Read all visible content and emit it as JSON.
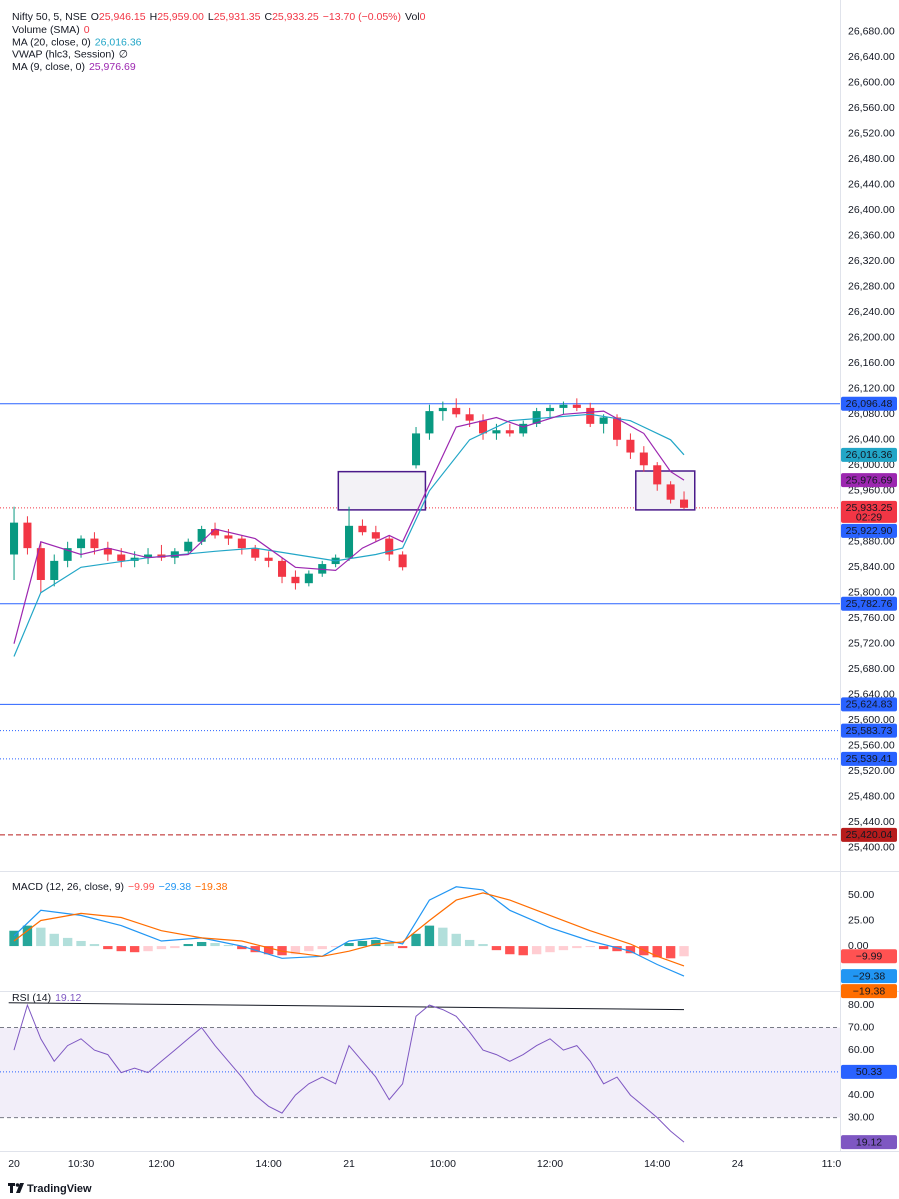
{
  "header": {
    "symbol": "Nifty 50, 5, NSE",
    "ohlc": [
      {
        "key": "O",
        "value": "25,946.15"
      },
      {
        "key": "H",
        "value": "25,959.00"
      },
      {
        "key": "L",
        "value": "25,931.35"
      },
      {
        "key": "C",
        "value": "25,933.25"
      }
    ],
    "change": "−13.70 (−0.05%)",
    "volume": {
      "key": "Vol",
      "value": "0"
    },
    "indicators": [
      {
        "name": "Volume (SMA)",
        "value": "0",
        "color": "#f23645"
      },
      {
        "name": "MA (20, close, 0)",
        "value": "26,016.36",
        "color": "#22a6c7"
      },
      {
        "name": "VWAP (hlc3, Session)",
        "value": "∅",
        "color": "#131722"
      },
      {
        "name": "MA (9, close, 0)",
        "value": "25,976.69",
        "color": "#9c27b0"
      }
    ]
  },
  "chart_data": [
    {
      "type": "candlestick",
      "up_color": "#089981",
      "down_color": "#f23645",
      "xlim": [
        -0.6,
        61.64
      ],
      "ylim": [
        25365,
        26730
      ],
      "grid": false,
      "yticks": [
        {
          "value": 26680,
          "label": "26,680.00"
        },
        {
          "value": 26640,
          "label": "26,640.00"
        },
        {
          "value": 26600,
          "label": "26,600.00"
        },
        {
          "value": 26560,
          "label": "26,560.00"
        },
        {
          "value": 26520,
          "label": "26,520.00"
        },
        {
          "value": 26480,
          "label": "26,480.00"
        },
        {
          "value": 26440,
          "label": "26,440.00"
        },
        {
          "value": 26400,
          "label": "26,400.00"
        },
        {
          "value": 26360,
          "label": "26,360.00"
        },
        {
          "value": 26320,
          "label": "26,320.00"
        },
        {
          "value": 26280,
          "label": "26,280.00"
        },
        {
          "value": 26240,
          "label": "26,240.00"
        },
        {
          "value": 26200,
          "label": "26,200.00"
        },
        {
          "value": 26160,
          "label": "26,160.00"
        },
        {
          "value": 26120,
          "label": "26,120.00"
        },
        {
          "value": 26080,
          "label": "26,080.00"
        },
        {
          "value": 26040,
          "label": "26,040.00"
        },
        {
          "value": 26000,
          "label": "26,000.00"
        },
        {
          "value": 25960,
          "label": "25,960.00"
        },
        {
          "value": 25920,
          "label": "25,920.00"
        },
        {
          "value": 25880,
          "label": "25,880.00"
        },
        {
          "value": 25840,
          "label": "25,840.00"
        },
        {
          "value": 25800,
          "label": "25,800.00"
        },
        {
          "value": 25760,
          "label": "25,760.00"
        },
        {
          "value": 25720,
          "label": "25,720.00"
        },
        {
          "value": 25680,
          "label": "25,680.00"
        },
        {
          "value": 25640,
          "label": "25,640.00"
        },
        {
          "value": 25600,
          "label": "25,600.00"
        },
        {
          "value": 25560,
          "label": "25,560.00"
        },
        {
          "value": 25520,
          "label": "25,520.00"
        },
        {
          "value": 25480,
          "label": "25,480.00"
        },
        {
          "value": 25440,
          "label": "25,440.00"
        },
        {
          "value": 25400,
          "label": "25,400.00"
        }
      ],
      "x": [
        0,
        1,
        2,
        3,
        4,
        5,
        6,
        7,
        8,
        9,
        10,
        11,
        12,
        13,
        14,
        15,
        16,
        17,
        18,
        19,
        20,
        21,
        22,
        23,
        24,
        25,
        26,
        27,
        28,
        29,
        30,
        31,
        32,
        33,
        34,
        35,
        36,
        37,
        38,
        39,
        40,
        41,
        42,
        43,
        44,
        45,
        46,
        47,
        48,
        49,
        50
      ],
      "open": [
        25860,
        25910,
        25870,
        25820,
        25850,
        25870,
        25885,
        25870,
        25860,
        25850,
        25855,
        25860,
        25855,
        25865,
        25880,
        25900,
        25890,
        25885,
        25870,
        25855,
        25850,
        25825,
        25815,
        25830,
        25845,
        25855,
        25905,
        25895,
        25885,
        25860,
        26000,
        26050,
        26085,
        26090,
        26080,
        26070,
        26050,
        26055,
        26050,
        26065,
        26085,
        26090,
        26095,
        26090,
        26065,
        26075,
        26040,
        26020,
        26000,
        25970,
        25946.15
      ],
      "high": [
        25935,
        25920,
        25880,
        25860,
        25880,
        25890,
        25895,
        25880,
        25870,
        25865,
        25870,
        25875,
        25870,
        25885,
        25905,
        25910,
        25900,
        25890,
        25875,
        25865,
        25855,
        25835,
        25835,
        25850,
        25860,
        25935,
        25915,
        25905,
        25890,
        25865,
        26060,
        26095,
        26100,
        26105,
        26090,
        26080,
        26065,
        26065,
        26070,
        26090,
        26095,
        26100,
        26105,
        26098,
        26080,
        26080,
        26050,
        26030,
        26005,
        25975,
        25959
      ],
      "low": [
        25820,
        25860,
        25800,
        25810,
        25840,
        25855,
        25860,
        25850,
        25840,
        25840,
        25845,
        25850,
        25845,
        25860,
        25875,
        25885,
        25875,
        25860,
        25850,
        25840,
        25815,
        25805,
        25810,
        25825,
        25840,
        25850,
        25890,
        25880,
        25850,
        25835,
        25995,
        26040,
        26070,
        26075,
        26060,
        26040,
        26040,
        26045,
        26045,
        26060,
        26075,
        26080,
        26085,
        26060,
        26050,
        26030,
        26010,
        25990,
        25960,
        25940,
        25931.35
      ],
      "close": [
        25910,
        25870,
        25820,
        25850,
        25870,
        25885,
        25870,
        25860,
        25850,
        25855,
        25860,
        25855,
        25865,
        25880,
        25900,
        25890,
        25885,
        25870,
        25855,
        25850,
        25825,
        25815,
        25830,
        25845,
        25855,
        25905,
        25895,
        25885,
        25860,
        25840,
        26050,
        26085,
        26090,
        26080,
        26070,
        26050,
        26055,
        26050,
        26065,
        26085,
        26090,
        26095,
        26090,
        26065,
        26075,
        26040,
        26020,
        26000,
        25970,
        25946,
        25933.25
      ],
      "lines": [
        {
          "color": "#22a6c7",
          "value_label": "26,016.36",
          "x": [
            0,
            2,
            5,
            10,
            15,
            18,
            21,
            24,
            27,
            29,
            31,
            34,
            37,
            40,
            43,
            46,
            49,
            50
          ],
          "values": [
            25700,
            25800,
            25840,
            25855,
            25865,
            25870,
            25860,
            25850,
            25860,
            25870,
            25960,
            26040,
            26070,
            26075,
            26080,
            26070,
            26040,
            26016.36
          ]
        },
        {
          "color": "#9c27b0",
          "value_label": "25,976.69",
          "x": [
            0,
            2,
            5,
            7,
            10,
            13,
            15,
            18,
            21,
            24,
            26,
            28,
            29,
            31,
            33,
            36,
            38,
            41,
            44,
            47,
            49,
            50
          ],
          "values": [
            25720,
            25880,
            25860,
            25870,
            25855,
            25860,
            25900,
            25885,
            25840,
            25835,
            25870,
            25890,
            25880,
            25970,
            26060,
            26075,
            26060,
            26080,
            26085,
            26050,
            25990,
            25976.69
          ]
        }
      ],
      "levels": [
        {
          "value": 26096.48,
          "label": "26,096.48",
          "color": "#2962ff",
          "style": "solid"
        },
        {
          "value": 25933.25,
          "label": "25,933.25",
          "sublabel": "02:29",
          "color": "#f23645",
          "style": "dotted"
        },
        {
          "value": 25922.9,
          "label": "25,922.90",
          "color": "#2962ff",
          "style": "none"
        },
        {
          "value": 25782.76,
          "label": "25,782.76",
          "color": "#2962ff",
          "style": "solid"
        },
        {
          "value": 25624.83,
          "label": "25,624.83",
          "color": "#2962ff",
          "style": "solid"
        },
        {
          "value": 25583.73,
          "label": "25,583.73",
          "color": "#2962ff",
          "style": "dotted"
        },
        {
          "value": 25539.41,
          "label": "25,539.41",
          "color": "#2962ff",
          "style": "dotted"
        },
        {
          "value": 25420.04,
          "label": "25,420.04",
          "color": "#b71c1c",
          "style": "dashed"
        }
      ],
      "boxes": [
        {
          "x": [
            24.2,
            30.7
          ],
          "values": [
            25990,
            25930
          ],
          "color": "#4a1a8a"
        },
        {
          "x": [
            46.4,
            50.8
          ],
          "values": [
            25991,
            25930
          ],
          "color": "#4a1a8a"
        }
      ]
    },
    {
      "type": "macd",
      "title": "MACD (12, 26, close, 9)",
      "xlim": [
        -0.6,
        61.64
      ],
      "ylim": [
        -43,
        72.5
      ],
      "yticks": [
        {
          "value": 50,
          "label": "50.00"
        },
        {
          "value": 25,
          "label": "25.00"
        },
        {
          "value": 0,
          "label": "0.00"
        }
      ],
      "histogram": {
        "x": [
          0,
          1,
          2,
          3,
          4,
          5,
          6,
          7,
          8,
          9,
          10,
          11,
          12,
          13,
          14,
          15,
          16,
          17,
          18,
          19,
          20,
          21,
          22,
          23,
          24,
          25,
          26,
          27,
          28,
          29,
          30,
          31,
          32,
          33,
          34,
          35,
          36,
          37,
          38,
          39,
          40,
          41,
          42,
          43,
          44,
          45,
          46,
          47,
          48,
          49,
          50
        ],
        "values": [
          15,
          20,
          18,
          12,
          8,
          5,
          2,
          -3,
          -5,
          -6,
          -5,
          -3,
          -2,
          2,
          4,
          3,
          1,
          -3,
          -6,
          -8,
          -9,
          -8,
          -5,
          -3,
          -1,
          3,
          5,
          6,
          4,
          -2,
          12,
          20,
          18,
          12,
          6,
          2,
          -4,
          -8,
          -9,
          -8,
          -6,
          -4,
          -2,
          -1,
          -3,
          -5,
          -7,
          -9,
          -11,
          -12,
          -9.99
        ],
        "value_label": "−9.99",
        "colors": {
          "up_rising": "#26a69a",
          "up_falling": "#b2dfdb",
          "down_falling": "#ff5252",
          "down_rising": "#ffcdd2"
        }
      },
      "lines": [
        {
          "color": "#2196f3",
          "value_label": "−29.38",
          "x": [
            0,
            2,
            5,
            8,
            11,
            14,
            17,
            20,
            23,
            25,
            27,
            29,
            31,
            33,
            35,
            37,
            40,
            43,
            46,
            48,
            50
          ],
          "values": [
            10,
            35,
            30,
            20,
            5,
            8,
            0,
            -12,
            -10,
            5,
            8,
            2,
            45,
            58,
            55,
            35,
            18,
            5,
            -5,
            -18,
            -29.38
          ]
        },
        {
          "color": "#ff6d00",
          "value_label": "−19.38",
          "x": [
            0,
            2,
            5,
            8,
            11,
            14,
            17,
            20,
            23,
            25,
            27,
            29,
            31,
            33,
            35,
            37,
            40,
            43,
            46,
            48,
            50
          ],
          "values": [
            5,
            25,
            32,
            28,
            15,
            8,
            5,
            -5,
            -10,
            -5,
            2,
            4,
            25,
            45,
            52,
            45,
            30,
            15,
            2,
            -10,
            -19.38
          ]
        }
      ]
    },
    {
      "type": "rsi",
      "title": "RSI (14)",
      "xlim": [
        -0.6,
        61.64
      ],
      "ylim": [
        15.6,
        85.8
      ],
      "yticks": [
        {
          "value": 80,
          "label": "80.00"
        },
        {
          "value": 70,
          "label": "70.00"
        },
        {
          "value": 60,
          "label": "60.00"
        },
        {
          "value": 40,
          "label": "40.00"
        },
        {
          "value": 30,
          "label": "30.00"
        }
      ],
      "band": {
        "lower": 30,
        "upper": 70,
        "fill": "#7e57c2"
      },
      "midline": {
        "value": 50.33,
        "label": "50.33",
        "color": "#2962ff"
      },
      "trendline": {
        "x": [
          -0.4,
          50
        ],
        "values": [
          81,
          78
        ],
        "color": "#131722"
      },
      "line": {
        "color": "#7e57c2",
        "value_label": "19.12",
        "x": [
          0,
          1,
          2,
          3,
          4,
          5,
          6,
          7,
          8,
          9,
          10,
          11,
          12,
          13,
          14,
          15,
          16,
          17,
          18,
          19,
          20,
          21,
          22,
          23,
          24,
          25,
          26,
          27,
          28,
          29,
          30,
          31,
          32,
          33,
          34,
          35,
          36,
          37,
          38,
          39,
          40,
          41,
          42,
          43,
          44,
          45,
          46,
          47,
          48,
          49,
          50
        ],
        "values": [
          60,
          80,
          65,
          55,
          62,
          65,
          60,
          58,
          50,
          52,
          50,
          55,
          60,
          65,
          70,
          62,
          55,
          48,
          40,
          35,
          32,
          40,
          45,
          48,
          45,
          62,
          55,
          48,
          38,
          45,
          75,
          80,
          78,
          75,
          68,
          60,
          58,
          55,
          58,
          62,
          65,
          60,
          62,
          55,
          45,
          48,
          40,
          35,
          30,
          24,
          19.12
        ]
      },
      "xticks": [
        {
          "value": 0,
          "label": "20"
        },
        {
          "value": 5,
          "label": "10:30"
        },
        {
          "value": 11,
          "label": "12:00"
        },
        {
          "value": 19,
          "label": "14:00"
        },
        {
          "value": 25,
          "label": "21"
        },
        {
          "value": 32,
          "label": "10:00"
        },
        {
          "value": 40,
          "label": "12:00"
        },
        {
          "value": 48,
          "label": "14:00"
        },
        {
          "value": 54,
          "label": "24"
        },
        {
          "value": 61,
          "label": "11:0"
        }
      ]
    }
  ],
  "footer": {
    "brand": "TradingView"
  }
}
